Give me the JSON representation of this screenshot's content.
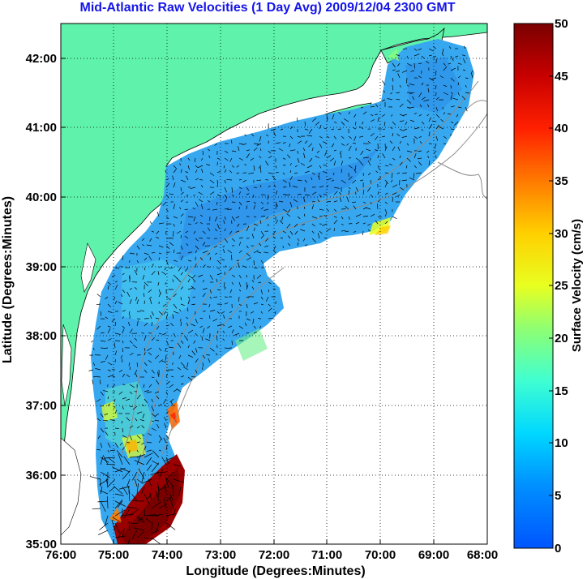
{
  "title": "Mid-Atlantic Raw Velocities (1 Day Avg) 2009/12/04 2300 GMT",
  "map": {
    "xlabel": "Longitude (Degrees:Minutes)",
    "ylabel": "Latitude (Degrees:Minutes)",
    "x_ticks": [
      "76:00",
      "75:00",
      "74:00",
      "73:00",
      "72:00",
      "71:00",
      "70:00",
      "69:00",
      "68:00"
    ],
    "y_ticks": [
      "42:00",
      "41:00",
      "40:00",
      "39:00",
      "38:00",
      "37:00",
      "36:00",
      "35:00"
    ],
    "longitude_range": [
      -76,
      -68
    ],
    "latitude_range": [
      35,
      42.5
    ],
    "grid": "dotted",
    "land_color": "#5ff2aa"
  },
  "colorbar": {
    "label": "Surface Velocity (cm/s)",
    "ticks": [
      "50",
      "45",
      "40",
      "35",
      "30",
      "25",
      "20",
      "15",
      "10",
      "5",
      "0"
    ],
    "range": [
      0,
      50
    ],
    "colormap": "jet"
  }
}
